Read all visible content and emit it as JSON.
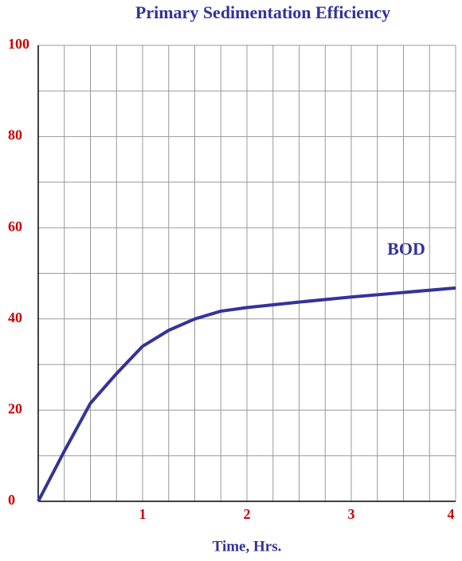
{
  "chart_data": {
    "type": "line",
    "title": "Primary Sedimentation Efficiency",
    "x_label": "Time, Hrs.",
    "annotation": "BOD",
    "x": [
      0,
      0.25,
      0.5,
      0.75,
      1,
      1.25,
      1.5,
      1.75,
      2,
      2.5,
      3,
      3.5,
      4
    ],
    "series": [
      {
        "name": "BOD",
        "color": "#333399",
        "values": [
          0,
          11,
          21.5,
          28,
          34,
          37.5,
          40,
          41.7,
          42.5,
          43.7,
          44.8,
          45.8,
          46.8
        ]
      }
    ],
    "xlim": [
      0,
      4
    ],
    "xticks": [
      1,
      2,
      3,
      4
    ],
    "x_minor_ticks": [
      0.25,
      0.5,
      0.75,
      1,
      1.25,
      1.5,
      1.75,
      2,
      2.25,
      2.5,
      2.75,
      3,
      3.25,
      3.5,
      3.75,
      4
    ],
    "ylim": [
      0,
      100
    ],
    "yticks": [
      0,
      20,
      40,
      60,
      80,
      100
    ],
    "y_minor_ticks": [
      10,
      20,
      30,
      40,
      50,
      60,
      70,
      80,
      90,
      100
    ],
    "grid": true
  }
}
